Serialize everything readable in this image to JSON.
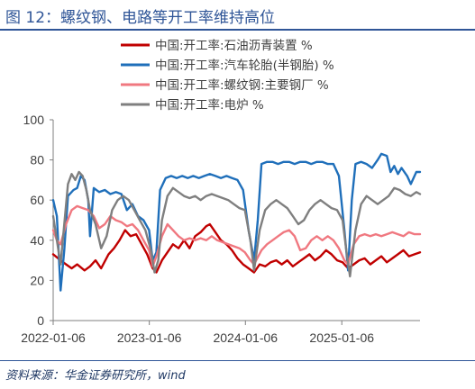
{
  "title": "图 12：螺纹钢、电路等开工率维持高位",
  "source": "资料来源：华金证券研究所，wind",
  "colors": {
    "title": "#2f5597",
    "series_red": "#c00000",
    "series_blue": "#1f6fba",
    "series_pink": "#f07880",
    "series_gray": "#7f7f7f"
  },
  "chart_data": {
    "type": "line",
    "title": "",
    "xlabel": "",
    "ylabel": "",
    "ylim": [
      0,
      100
    ],
    "yticks": [
      "0",
      "20",
      "40",
      "60",
      "80",
      "100"
    ],
    "xticks": [
      "2022-01-06",
      "2023-01-06",
      "2024-01-06",
      "2025-01-06"
    ],
    "xlim": [
      "2022-01-06",
      "2025-10-30"
    ],
    "grid": false,
    "legend_position": "top-left",
    "series": [
      {
        "name": "中国:开工率:石油沥青装置 %",
        "color": "#c00000",
        "points": [
          [
            "2022-01-06",
            33
          ],
          [
            "2022-02-03",
            30
          ],
          [
            "2022-02-24",
            28
          ],
          [
            "2022-03-17",
            26
          ],
          [
            "2022-04-07",
            28
          ],
          [
            "2022-05-05",
            25
          ],
          [
            "2022-05-26",
            27
          ],
          [
            "2022-06-16",
            30
          ],
          [
            "2022-07-07",
            26
          ],
          [
            "2022-08-04",
            33
          ],
          [
            "2022-08-25",
            36
          ],
          [
            "2022-09-15",
            40
          ],
          [
            "2022-10-06",
            45
          ],
          [
            "2022-10-27",
            42
          ],
          [
            "2022-11-17",
            43
          ],
          [
            "2022-12-08",
            38
          ],
          [
            "2022-12-29",
            33
          ],
          [
            "2023-01-19",
            26
          ],
          [
            "2023-02-02",
            24
          ],
          [
            "2023-02-23",
            30
          ],
          [
            "2023-03-16",
            34
          ],
          [
            "2023-04-06",
            38
          ],
          [
            "2023-04-27",
            36
          ],
          [
            "2023-05-18",
            40
          ],
          [
            "2023-06-08",
            36
          ],
          [
            "2023-06-29",
            42
          ],
          [
            "2023-07-20",
            44
          ],
          [
            "2023-08-10",
            47
          ],
          [
            "2023-08-24",
            48
          ],
          [
            "2023-09-14",
            44
          ],
          [
            "2023-10-05",
            40
          ],
          [
            "2023-10-26",
            38
          ],
          [
            "2023-11-16",
            35
          ],
          [
            "2023-12-07",
            31
          ],
          [
            "2023-12-28",
            28
          ],
          [
            "2024-01-18",
            26
          ],
          [
            "2024-02-08",
            24
          ],
          [
            "2024-02-29",
            28
          ],
          [
            "2024-03-21",
            27
          ],
          [
            "2024-04-11",
            29
          ],
          [
            "2024-05-02",
            30
          ],
          [
            "2024-05-23",
            28
          ],
          [
            "2024-06-13",
            30
          ],
          [
            "2024-07-04",
            27
          ],
          [
            "2024-07-25",
            29
          ],
          [
            "2024-08-15",
            31
          ],
          [
            "2024-09-05",
            33
          ],
          [
            "2024-09-26",
            30
          ],
          [
            "2024-10-17",
            32
          ],
          [
            "2024-11-07",
            35
          ],
          [
            "2024-11-28",
            33
          ],
          [
            "2024-12-19",
            30
          ],
          [
            "2025-01-09",
            29
          ],
          [
            "2025-01-30",
            26
          ],
          [
            "2025-02-20",
            28
          ],
          [
            "2025-03-13",
            30
          ],
          [
            "2025-04-03",
            31
          ],
          [
            "2025-04-24",
            28
          ],
          [
            "2025-05-15",
            30
          ],
          [
            "2025-06-05",
            32
          ],
          [
            "2025-06-26",
            29
          ],
          [
            "2025-07-17",
            31
          ],
          [
            "2025-08-07",
            33
          ],
          [
            "2025-08-28",
            35
          ],
          [
            "2025-09-18",
            32
          ],
          [
            "2025-10-09",
            33
          ],
          [
            "2025-10-30",
            34
          ]
        ]
      },
      {
        "name": "中国:开工率:汽车轮胎(半钢胎) %",
        "color": "#1f6fba",
        "points": [
          [
            "2022-01-06",
            60
          ],
          [
            "2022-01-20",
            52
          ],
          [
            "2022-02-03",
            15
          ],
          [
            "2022-02-17",
            35
          ],
          [
            "2022-03-03",
            62
          ],
          [
            "2022-03-24",
            65
          ],
          [
            "2022-04-07",
            66
          ],
          [
            "2022-04-21",
            72
          ],
          [
            "2022-05-05",
            70
          ],
          [
            "2022-05-19",
            60
          ],
          [
            "2022-05-26",
            42
          ],
          [
            "2022-06-09",
            66
          ],
          [
            "2022-06-30",
            64
          ],
          [
            "2022-07-21",
            65
          ],
          [
            "2022-08-11",
            63
          ],
          [
            "2022-09-01",
            64
          ],
          [
            "2022-09-22",
            63
          ],
          [
            "2022-10-13",
            55
          ],
          [
            "2022-11-03",
            58
          ],
          [
            "2022-11-24",
            52
          ],
          [
            "2022-12-15",
            50
          ],
          [
            "2023-01-05",
            45
          ],
          [
            "2023-01-19",
            30
          ],
          [
            "2023-02-02",
            34
          ],
          [
            "2023-02-16",
            65
          ],
          [
            "2023-03-09",
            71
          ],
          [
            "2023-03-30",
            72
          ],
          [
            "2023-04-20",
            71
          ],
          [
            "2023-05-11",
            72
          ],
          [
            "2023-06-01",
            71
          ],
          [
            "2023-06-22",
            72
          ],
          [
            "2023-07-13",
            71
          ],
          [
            "2023-08-03",
            72
          ],
          [
            "2023-08-24",
            73
          ],
          [
            "2023-09-14",
            72
          ],
          [
            "2023-10-05",
            71
          ],
          [
            "2023-10-26",
            72
          ],
          [
            "2023-11-16",
            71
          ],
          [
            "2023-12-07",
            70
          ],
          [
            "2023-12-28",
            65
          ],
          [
            "2024-01-18",
            45
          ],
          [
            "2024-02-08",
            30
          ],
          [
            "2024-02-22",
            50
          ],
          [
            "2024-03-07",
            78
          ],
          [
            "2024-03-28",
            79
          ],
          [
            "2024-04-18",
            79
          ],
          [
            "2024-05-09",
            78
          ],
          [
            "2024-05-30",
            79
          ],
          [
            "2024-06-20",
            79
          ],
          [
            "2024-07-11",
            78
          ],
          [
            "2024-08-01",
            79
          ],
          [
            "2024-08-22",
            79
          ],
          [
            "2024-09-12",
            78
          ],
          [
            "2024-10-03",
            79
          ],
          [
            "2024-10-24",
            79
          ],
          [
            "2024-11-14",
            78
          ],
          [
            "2024-12-05",
            78
          ],
          [
            "2024-12-26",
            72
          ],
          [
            "2025-01-16",
            45
          ],
          [
            "2025-01-30",
            25
          ],
          [
            "2025-02-13",
            60
          ],
          [
            "2025-02-27",
            78
          ],
          [
            "2025-03-20",
            79
          ],
          [
            "2025-04-10",
            78
          ],
          [
            "2025-05-01",
            76
          ],
          [
            "2025-05-22",
            80
          ],
          [
            "2025-06-05",
            83
          ],
          [
            "2025-06-26",
            82
          ],
          [
            "2025-07-10",
            74
          ],
          [
            "2025-07-24",
            77
          ],
          [
            "2025-08-07",
            73
          ],
          [
            "2025-08-21",
            76
          ],
          [
            "2025-09-11",
            72
          ],
          [
            "2025-09-25",
            68
          ],
          [
            "2025-10-16",
            74
          ],
          [
            "2025-10-30",
            74
          ]
        ]
      },
      {
        "name": "中国:开工率:螺纹钢:主要钢厂 %",
        "color": "#f07880",
        "points": [
          [
            "2022-01-06",
            45
          ],
          [
            "2022-01-20",
            40
          ],
          [
            "2022-02-03",
            38
          ],
          [
            "2022-02-24",
            48
          ],
          [
            "2022-03-17",
            55
          ],
          [
            "2022-04-07",
            57
          ],
          [
            "2022-04-28",
            56
          ],
          [
            "2022-05-19",
            55
          ],
          [
            "2022-06-09",
            52
          ],
          [
            "2022-06-30",
            46
          ],
          [
            "2022-07-21",
            48
          ],
          [
            "2022-08-11",
            52
          ],
          [
            "2022-09-01",
            50
          ],
          [
            "2022-09-22",
            49
          ],
          [
            "2022-10-13",
            47
          ],
          [
            "2022-11-03",
            48
          ],
          [
            "2022-11-24",
            45
          ],
          [
            "2022-12-15",
            40
          ],
          [
            "2023-01-05",
            35
          ],
          [
            "2023-01-19",
            27
          ],
          [
            "2023-02-02",
            32
          ],
          [
            "2023-02-23",
            42
          ],
          [
            "2023-03-16",
            48
          ],
          [
            "2023-04-06",
            45
          ],
          [
            "2023-04-27",
            42
          ],
          [
            "2023-05-18",
            40
          ],
          [
            "2023-06-08",
            41
          ],
          [
            "2023-06-29",
            40
          ],
          [
            "2023-07-20",
            41
          ],
          [
            "2023-08-10",
            40
          ],
          [
            "2023-08-31",
            42
          ],
          [
            "2023-09-21",
            40
          ],
          [
            "2023-10-12",
            39
          ],
          [
            "2023-11-02",
            38
          ],
          [
            "2023-11-23",
            37
          ],
          [
            "2023-12-14",
            36
          ],
          [
            "2024-01-04",
            34
          ],
          [
            "2024-01-25",
            30
          ],
          [
            "2024-02-08",
            28
          ],
          [
            "2024-03-07",
            35
          ],
          [
            "2024-03-28",
            38
          ],
          [
            "2024-04-18",
            40
          ],
          [
            "2024-05-09",
            42
          ],
          [
            "2024-05-30",
            44
          ],
          [
            "2024-06-20",
            45
          ],
          [
            "2024-07-11",
            42
          ],
          [
            "2024-08-01",
            35
          ],
          [
            "2024-08-22",
            36
          ],
          [
            "2024-09-12",
            40
          ],
          [
            "2024-10-03",
            42
          ],
          [
            "2024-10-24",
            40
          ],
          [
            "2024-11-14",
            42
          ],
          [
            "2024-12-05",
            40
          ],
          [
            "2024-12-26",
            36
          ],
          [
            "2025-01-16",
            30
          ],
          [
            "2025-01-30",
            28
          ],
          [
            "2025-02-20",
            38
          ],
          [
            "2025-03-13",
            42
          ],
          [
            "2025-04-03",
            43
          ],
          [
            "2025-04-24",
            42
          ],
          [
            "2025-05-15",
            43
          ],
          [
            "2025-06-05",
            42
          ],
          [
            "2025-06-26",
            43
          ],
          [
            "2025-07-17",
            44
          ],
          [
            "2025-08-07",
            43
          ],
          [
            "2025-08-28",
            42
          ],
          [
            "2025-09-18",
            44
          ],
          [
            "2025-10-09",
            43
          ],
          [
            "2025-10-30",
            43
          ]
        ]
      },
      {
        "name": "中国:开工率:电炉 %",
        "color": "#7f7f7f",
        "points": [
          [
            "2022-01-06",
            52
          ],
          [
            "2022-01-20",
            40
          ],
          [
            "2022-02-03",
            28
          ],
          [
            "2022-02-17",
            48
          ],
          [
            "2022-03-03",
            68
          ],
          [
            "2022-03-17",
            73
          ],
          [
            "2022-03-31",
            70
          ],
          [
            "2022-04-14",
            74
          ],
          [
            "2022-04-28",
            72
          ],
          [
            "2022-05-12",
            65
          ],
          [
            "2022-05-26",
            55
          ],
          [
            "2022-06-16",
            48
          ],
          [
            "2022-07-07",
            36
          ],
          [
            "2022-07-28",
            42
          ],
          [
            "2022-08-18",
            55
          ],
          [
            "2022-09-08",
            60
          ],
          [
            "2022-09-29",
            62
          ],
          [
            "2022-10-20",
            60
          ],
          [
            "2022-11-10",
            55
          ],
          [
            "2022-12-01",
            50
          ],
          [
            "2022-12-22",
            45
          ],
          [
            "2023-01-12",
            35
          ],
          [
            "2023-01-26",
            24
          ],
          [
            "2023-02-09",
            30
          ],
          [
            "2023-02-23",
            50
          ],
          [
            "2023-03-16",
            62
          ],
          [
            "2023-04-06",
            66
          ],
          [
            "2023-04-27",
            64
          ],
          [
            "2023-05-18",
            62
          ],
          [
            "2023-06-08",
            61
          ],
          [
            "2023-06-29",
            62
          ],
          [
            "2023-07-20",
            60
          ],
          [
            "2023-08-10",
            62
          ],
          [
            "2023-08-31",
            63
          ],
          [
            "2023-09-21",
            62
          ],
          [
            "2023-10-12",
            61
          ],
          [
            "2023-11-02",
            60
          ],
          [
            "2023-11-23",
            58
          ],
          [
            "2023-12-14",
            56
          ],
          [
            "2024-01-04",
            55
          ],
          [
            "2024-01-25",
            40
          ],
          [
            "2024-02-08",
            25
          ],
          [
            "2024-02-29",
            45
          ],
          [
            "2024-03-21",
            55
          ],
          [
            "2024-04-11",
            58
          ],
          [
            "2024-05-02",
            60
          ],
          [
            "2024-05-23",
            58
          ],
          [
            "2024-06-13",
            56
          ],
          [
            "2024-07-04",
            52
          ],
          [
            "2024-07-25",
            48
          ],
          [
            "2024-08-15",
            50
          ],
          [
            "2024-09-05",
            55
          ],
          [
            "2024-09-26",
            58
          ],
          [
            "2024-10-17",
            60
          ],
          [
            "2024-11-07",
            58
          ],
          [
            "2024-11-28",
            56
          ],
          [
            "2024-12-19",
            55
          ],
          [
            "2025-01-09",
            50
          ],
          [
            "2025-01-23",
            35
          ],
          [
            "2025-02-06",
            22
          ],
          [
            "2025-02-27",
            45
          ],
          [
            "2025-03-20",
            58
          ],
          [
            "2025-04-10",
            62
          ],
          [
            "2025-05-01",
            60
          ],
          [
            "2025-05-22",
            58
          ],
          [
            "2025-06-12",
            60
          ],
          [
            "2025-07-03",
            62
          ],
          [
            "2025-07-24",
            66
          ],
          [
            "2025-08-14",
            65
          ],
          [
            "2025-09-04",
            63
          ],
          [
            "2025-09-25",
            62
          ],
          [
            "2025-10-16",
            64
          ],
          [
            "2025-10-30",
            63
          ]
        ]
      }
    ]
  }
}
